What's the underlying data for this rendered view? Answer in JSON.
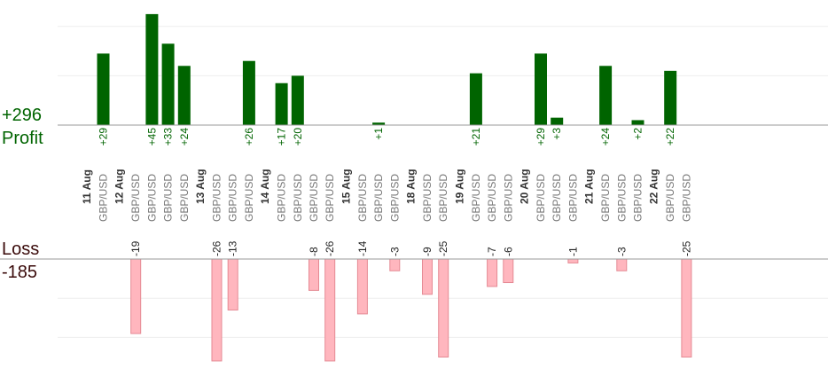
{
  "summary": {
    "profit_total": "+296",
    "profit_label": "Profit",
    "loss_label": "Loss",
    "loss_total": "-185"
  },
  "colors": {
    "profit": "#006400",
    "profit_text": "#006400",
    "loss_fill": "#ffb6be",
    "loss_stroke": "#e58a94",
    "loss_text": "#222222",
    "date_text": "#333333",
    "pair_text": "#777777",
    "axis": "#999999",
    "grid": "#eeeeee"
  },
  "chart_data": {
    "type": "bar",
    "profit_axis": {
      "ylim": [
        0,
        52
      ],
      "grid": [
        20,
        40
      ]
    },
    "loss_axis": {
      "ylim": [
        0,
        26
      ],
      "grid": [
        10,
        20
      ]
    },
    "categories": [
      {
        "date": "11 Aug",
        "pairs": [
          {
            "pair": "GBP/USD",
            "profit": 29
          }
        ]
      },
      {
        "date": "12 Aug",
        "pairs": [
          {
            "pair": "GBP/USD",
            "loss": 19
          },
          {
            "pair": "GBP/USD",
            "profit": 45
          },
          {
            "pair": "GBP/USD",
            "profit": 33
          },
          {
            "pair": "GBP/USD",
            "profit": 24
          }
        ]
      },
      {
        "date": "13 Aug",
        "pairs": [
          {
            "pair": "GBP/USD",
            "loss": 26
          },
          {
            "pair": "GBP/USD",
            "loss": 13
          },
          {
            "pair": "GBP/USD",
            "profit": 26
          }
        ]
      },
      {
        "date": "14 Aug",
        "pairs": [
          {
            "pair": "GBP/USD",
            "profit": 17
          },
          {
            "pair": "GBP/USD",
            "profit": 20
          },
          {
            "pair": "GBP/USD",
            "loss": 8
          },
          {
            "pair": "GBP/USD",
            "loss": 26
          }
        ]
      },
      {
        "date": "15 Aug",
        "pairs": [
          {
            "pair": "GBP/USD",
            "loss": 14
          },
          {
            "pair": "GBP/USD",
            "profit": 1
          },
          {
            "pair": "GBP/USD",
            "loss": 3
          }
        ]
      },
      {
        "date": "18 Aug",
        "pairs": [
          {
            "pair": "GBP/USD",
            "loss": 9
          },
          {
            "pair": "GBP/USD",
            "loss": 25
          }
        ]
      },
      {
        "date": "19 Aug",
        "pairs": [
          {
            "pair": "GBP/USD",
            "profit": 21
          },
          {
            "pair": "GBP/USD",
            "loss": 7
          },
          {
            "pair": "GBP/USD",
            "loss": 6
          }
        ]
      },
      {
        "date": "20 Aug",
        "pairs": [
          {
            "pair": "GBP/USD",
            "profit": 29
          },
          {
            "pair": "GBP/USD",
            "profit": 3
          },
          {
            "pair": "GBP/USD",
            "loss": 1
          }
        ]
      },
      {
        "date": "21 Aug",
        "pairs": [
          {
            "pair": "GBP/USD",
            "profit": 24
          },
          {
            "pair": "GBP/USD",
            "loss": 3
          },
          {
            "pair": "GBP/USD",
            "profit": 2
          }
        ]
      },
      {
        "date": "22 Aug",
        "pairs": [
          {
            "pair": "GBP/USD",
            "profit": 22
          },
          {
            "pair": "GBP/USD",
            "loss": 25
          }
        ]
      }
    ]
  }
}
